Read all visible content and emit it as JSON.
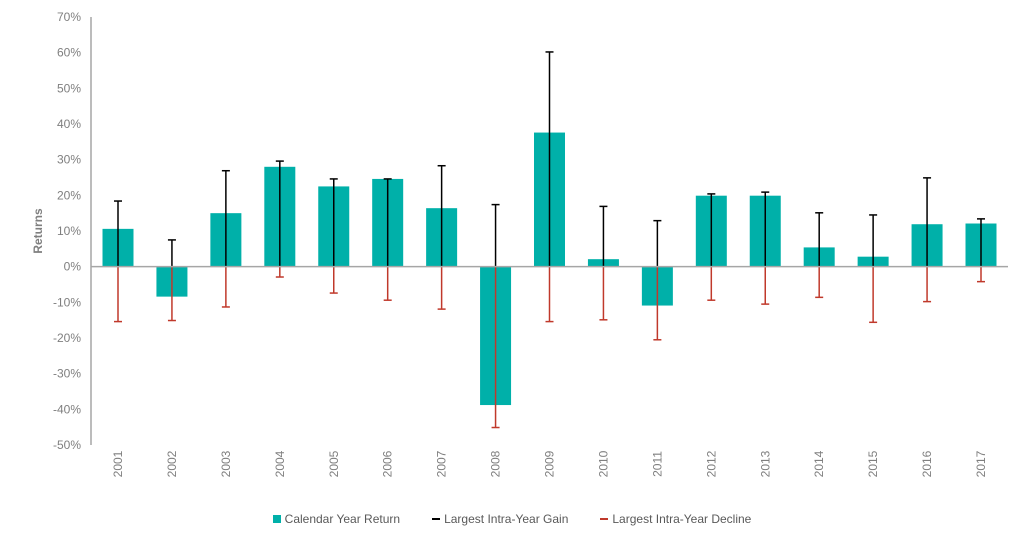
{
  "chart_data": {
    "type": "bar",
    "title": "",
    "xlabel": "",
    "ylabel": "Returns",
    "ylim": [
      -50,
      70
    ],
    "yticks": [
      70,
      60,
      50,
      40,
      30,
      20,
      10,
      0,
      -10,
      -20,
      -30,
      -40,
      -50
    ],
    "ytick_labels": [
      "70%",
      "60%",
      "50%",
      "40%",
      "30%",
      "20%",
      "10%",
      "0%",
      "-10%",
      "-20%",
      "-30%",
      "-40%",
      "-50%"
    ],
    "categories": [
      "2001",
      "2002",
      "2003",
      "2004",
      "2005",
      "2006",
      "2007",
      "2008",
      "2009",
      "2010",
      "2011",
      "2012",
      "2013",
      "2014",
      "2015",
      "2016",
      "2017"
    ],
    "series": [
      {
        "name": "Calendar Year Return",
        "kind": "bar",
        "color": "#00b0a9",
        "values": [
          10.6,
          -8.4,
          15.0,
          28.0,
          22.5,
          24.6,
          16.4,
          -38.8,
          37.6,
          2.1,
          -10.9,
          19.9,
          19.9,
          5.4,
          2.8,
          11.9,
          12.1
        ]
      },
      {
        "name": "Largest Intra-Year Gain",
        "kind": "errorbar-up",
        "color": "#000000",
        "values": [
          18.4,
          7.5,
          26.9,
          29.6,
          24.6,
          24.6,
          28.3,
          17.4,
          60.2,
          16.9,
          12.9,
          20.4,
          20.9,
          15.1,
          14.5,
          24.9,
          13.4
        ]
      },
      {
        "name": "Largest Intra-Year Decline",
        "kind": "errorbar-down",
        "color": "#c0392b",
        "values": [
          -15.4,
          -15.1,
          -11.3,
          -2.9,
          -7.4,
          -9.4,
          -11.9,
          -45.1,
          -15.4,
          -14.9,
          -20.5,
          -9.4,
          -10.5,
          -8.6,
          -15.6,
          -9.8,
          -4.2
        ]
      }
    ],
    "grid": false,
    "legend_position": "bottom"
  }
}
